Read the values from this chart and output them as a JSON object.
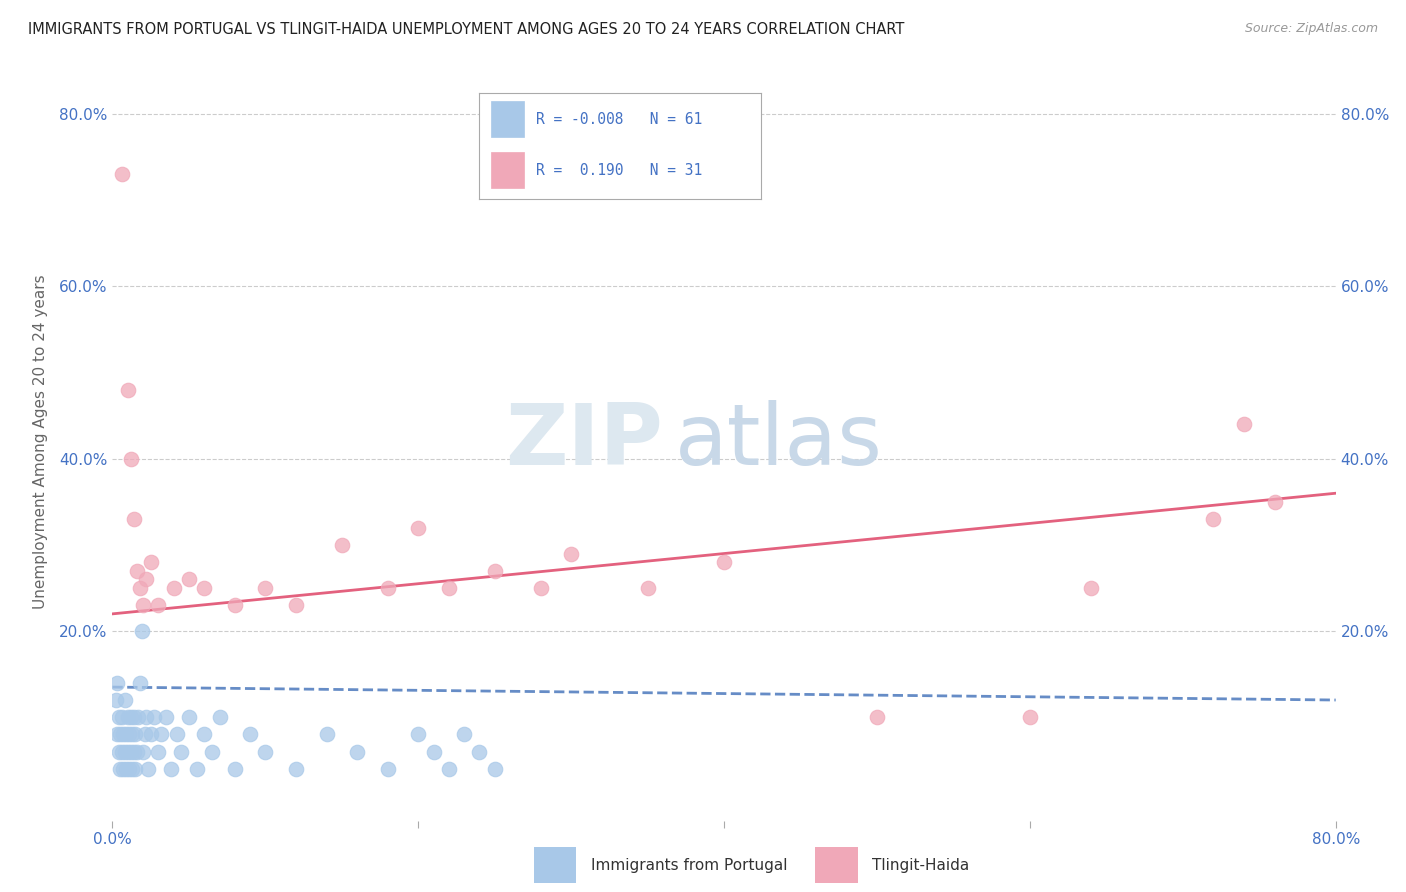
{
  "title": "IMMIGRANTS FROM PORTUGAL VS TLINGIT-HAIDA UNEMPLOYMENT AMONG AGES 20 TO 24 YEARS CORRELATION CHART",
  "source": "Source: ZipAtlas.com",
  "ylabel": "Unemployment Among Ages 20 to 24 years",
  "legend_label1": "Immigrants from Portugal",
  "legend_label2": "Tlingit-Haida",
  "R1": "-0.008",
  "N1": "61",
  "R2": "0.190",
  "N2": "31",
  "watermark_zip": "ZIP",
  "watermark_atlas": "atlas",
  "color_blue": "#a8c8e8",
  "color_pink": "#f0a8b8",
  "color_blue_line": "#5580c0",
  "color_pink_line": "#e05070",
  "color_blue_text": "#4472c4",
  "ytick_vals": [
    0.0,
    0.2,
    0.4,
    0.6,
    0.8
  ],
  "ytick_labels": [
    "",
    "20.0%",
    "40.0%",
    "60.0%",
    "80.0%"
  ],
  "xlim": [
    0.0,
    0.8
  ],
  "ylim": [
    -0.02,
    0.86
  ],
  "blue_x": [
    0.002,
    0.003,
    0.003,
    0.004,
    0.004,
    0.005,
    0.005,
    0.006,
    0.006,
    0.007,
    0.007,
    0.008,
    0.008,
    0.009,
    0.009,
    0.01,
    0.01,
    0.011,
    0.011,
    0.012,
    0.012,
    0.013,
    0.013,
    0.014,
    0.014,
    0.015,
    0.015,
    0.016,
    0.017,
    0.018,
    0.019,
    0.02,
    0.021,
    0.022,
    0.023,
    0.025,
    0.027,
    0.03,
    0.032,
    0.035,
    0.038,
    0.042,
    0.045,
    0.05,
    0.055,
    0.06,
    0.065,
    0.07,
    0.08,
    0.09,
    0.1,
    0.12,
    0.14,
    0.16,
    0.18,
    0.2,
    0.21,
    0.22,
    0.23,
    0.24,
    0.25
  ],
  "blue_y": [
    0.12,
    0.08,
    0.14,
    0.06,
    0.1,
    0.04,
    0.08,
    0.06,
    0.1,
    0.04,
    0.08,
    0.06,
    0.12,
    0.04,
    0.08,
    0.06,
    0.1,
    0.04,
    0.08,
    0.06,
    0.1,
    0.04,
    0.08,
    0.06,
    0.1,
    0.04,
    0.08,
    0.06,
    0.1,
    0.14,
    0.2,
    0.06,
    0.08,
    0.1,
    0.04,
    0.08,
    0.1,
    0.06,
    0.08,
    0.1,
    0.04,
    0.08,
    0.06,
    0.1,
    0.04,
    0.08,
    0.06,
    0.1,
    0.04,
    0.08,
    0.06,
    0.04,
    0.08,
    0.06,
    0.04,
    0.08,
    0.06,
    0.04,
    0.08,
    0.06,
    0.04
  ],
  "pink_x": [
    0.006,
    0.01,
    0.012,
    0.014,
    0.016,
    0.018,
    0.02,
    0.022,
    0.025,
    0.03,
    0.04,
    0.05,
    0.06,
    0.08,
    0.1,
    0.12,
    0.15,
    0.18,
    0.2,
    0.22,
    0.25,
    0.28,
    0.3,
    0.35,
    0.4,
    0.5,
    0.6,
    0.64,
    0.72,
    0.74,
    0.76
  ],
  "pink_y": [
    0.73,
    0.48,
    0.4,
    0.33,
    0.27,
    0.25,
    0.23,
    0.26,
    0.28,
    0.23,
    0.25,
    0.26,
    0.25,
    0.23,
    0.25,
    0.23,
    0.3,
    0.25,
    0.32,
    0.25,
    0.27,
    0.25,
    0.29,
    0.25,
    0.28,
    0.1,
    0.1,
    0.25,
    0.33,
    0.44,
    0.35
  ],
  "blue_trend_x": [
    0.0,
    0.8
  ],
  "blue_trend_y": [
    0.135,
    0.12
  ],
  "pink_trend_x": [
    0.0,
    0.8
  ],
  "pink_trend_y": [
    0.22,
    0.36
  ],
  "grid_color": "#cccccc",
  "bg_color": "#ffffff"
}
